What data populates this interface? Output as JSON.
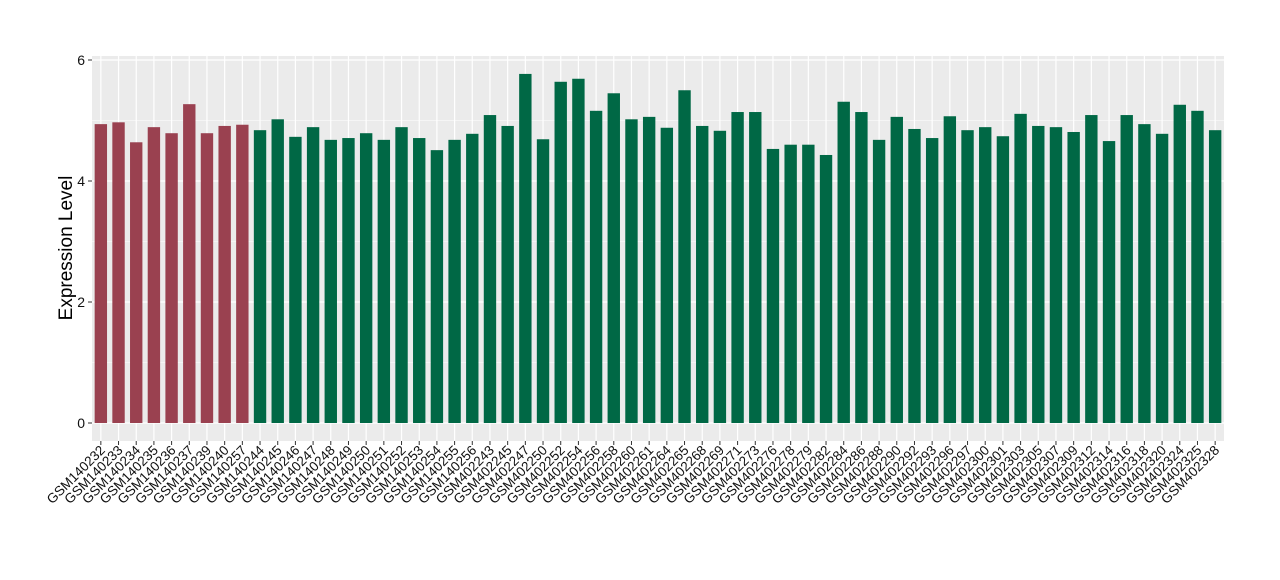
{
  "chart_data": {
    "type": "bar",
    "title": "",
    "xlabel": "",
    "ylabel": "Expression Level",
    "ylim": [
      0,
      6
    ],
    "yticks": [
      0,
      2,
      4,
      6
    ],
    "grid": true,
    "legend": "none",
    "colors": {
      "group1": "#9a4150",
      "group2": "#006845",
      "panel": "#ebebeb",
      "grid": "#ffffff"
    },
    "categories": [
      "GSM140232",
      "GSM140233",
      "GSM140234",
      "GSM140235",
      "GSM140236",
      "GSM140237",
      "GSM140239",
      "GSM140240",
      "GSM140257",
      "GSM140244",
      "GSM140245",
      "GSM140246",
      "GSM140247",
      "GSM140248",
      "GSM140249",
      "GSM140250",
      "GSM140251",
      "GSM140252",
      "GSM140253",
      "GSM140254",
      "GSM140255",
      "GSM140256",
      "GSM402243",
      "GSM402245",
      "GSM402247",
      "GSM402250",
      "GSM402252",
      "GSM402254",
      "GSM402256",
      "GSM402258",
      "GSM402260",
      "GSM402261",
      "GSM402264",
      "GSM402265",
      "GSM402268",
      "GSM402269",
      "GSM402271",
      "GSM402273",
      "GSM402276",
      "GSM402278",
      "GSM402279",
      "GSM402282",
      "GSM402284",
      "GSM402286",
      "GSM402288",
      "GSM402290",
      "GSM402292",
      "GSM402293",
      "GSM402296",
      "GSM402297",
      "GSM402300",
      "GSM402301",
      "GSM402303",
      "GSM402305",
      "GSM402307",
      "GSM402309",
      "GSM402312",
      "GSM402314",
      "GSM402316",
      "GSM402318",
      "GSM402320",
      "GSM402324",
      "GSM402325",
      "GSM402328"
    ],
    "values": [
      4.94,
      4.97,
      4.64,
      4.89,
      4.79,
      5.27,
      4.79,
      4.91,
      4.93,
      4.84,
      5.02,
      4.73,
      4.89,
      4.68,
      4.71,
      4.79,
      4.68,
      4.89,
      4.71,
      4.51,
      4.68,
      4.78,
      5.09,
      4.91,
      5.77,
      4.69,
      5.64,
      5.69,
      5.16,
      5.45,
      5.02,
      5.06,
      4.88,
      5.5,
      4.91,
      4.83,
      5.14,
      5.14,
      4.53,
      4.6,
      4.6,
      4.43,
      5.31,
      5.14,
      4.68,
      5.06,
      4.86,
      4.71,
      5.07,
      4.84,
      4.89,
      4.74,
      5.11,
      4.91,
      4.89,
      4.81,
      5.09,
      4.66,
      5.09,
      4.94,
      4.78,
      5.26,
      5.16,
      4.84
    ],
    "groups": [
      1,
      1,
      1,
      1,
      1,
      1,
      1,
      1,
      1,
      2,
      2,
      2,
      2,
      2,
      2,
      2,
      2,
      2,
      2,
      2,
      2,
      2,
      2,
      2,
      2,
      2,
      2,
      2,
      2,
      2,
      2,
      2,
      2,
      2,
      2,
      2,
      2,
      2,
      2,
      2,
      2,
      2,
      2,
      2,
      2,
      2,
      2,
      2,
      2,
      2,
      2,
      2,
      2,
      2,
      2,
      2,
      2,
      2,
      2,
      2,
      2,
      2,
      2,
      2
    ]
  }
}
